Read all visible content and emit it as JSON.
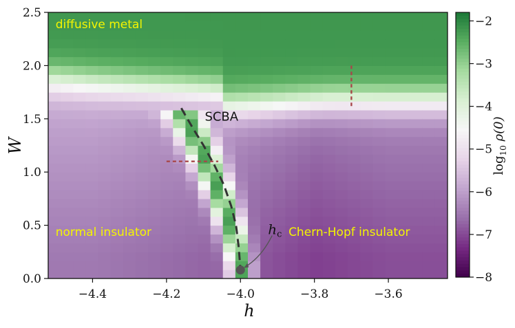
{
  "chart_data": {
    "type": "heatmap",
    "xlabel": "h",
    "ylabel": "W",
    "xlim": [
      -4.52,
      -3.44
    ],
    "ylim": [
      0.0,
      2.5
    ],
    "x_ticks": [
      "−4.4",
      "−4.2",
      "−4.0",
      "−3.8",
      "−3.6"
    ],
    "x_tick_values": [
      -4.4,
      -4.2,
      -4.0,
      -3.8,
      -3.6
    ],
    "y_ticks": [
      "0.0",
      "0.5",
      "1.0",
      "1.5",
      "2.0",
      "2.5"
    ],
    "y_tick_values": [
      0.0,
      0.5,
      1.0,
      1.5,
      2.0,
      2.5
    ],
    "colorbar": {
      "label": "log10 ρ(0)",
      "label_base": "log",
      "label_sub": "10",
      "label_rest": " ρ(0)",
      "range": [
        -8,
        -1.8
      ],
      "ticks": [
        "−2",
        "−3",
        "−4",
        "−5",
        "−6",
        "−7",
        "−8"
      ],
      "tick_values": [
        -2,
        -3,
        -4,
        -5,
        -6,
        -7,
        -8
      ],
      "colormap": [
        "#40004b",
        "#762a83",
        "#9970ab",
        "#c2a5cf",
        "#e7d4e8",
        "#f7f7f7",
        "#d9f0d3",
        "#a6dba0",
        "#5aae61",
        "#1b7837"
      ]
    },
    "phase_labels": [
      {
        "text": "diffusive metal",
        "h": -4.5,
        "W": 2.35
      },
      {
        "text": "normal insulator",
        "h": -4.5,
        "W": 0.4
      },
      {
        "text": "Chern-Hopf insulator",
        "h": -3.87,
        "W": 0.4
      }
    ],
    "label_color": "#f5f500",
    "scba_curve": {
      "label": "SCBA",
      "points": [
        [
          -4.16,
          1.6
        ],
        [
          -4.13,
          1.42
        ],
        [
          -4.1,
          1.25
        ],
        [
          -4.07,
          1.06
        ],
        [
          -4.045,
          0.88
        ],
        [
          -4.025,
          0.68
        ],
        [
          -4.012,
          0.5
        ],
        [
          -4.005,
          0.3
        ],
        [
          -4.0,
          0.08
        ]
      ]
    },
    "critical_point": {
      "label": "h",
      "label_sub": "c",
      "h": -4.0,
      "W": 0.08
    },
    "cuts": [
      {
        "type": "horizontal",
        "W": 1.1,
        "h_range": [
          -4.2,
          -4.06
        ],
        "color": "#a8474a"
      },
      {
        "type": "vertical",
        "h": -3.7,
        "W_range": [
          1.62,
          2.0
        ],
        "color": "#a8474a"
      }
    ]
  }
}
